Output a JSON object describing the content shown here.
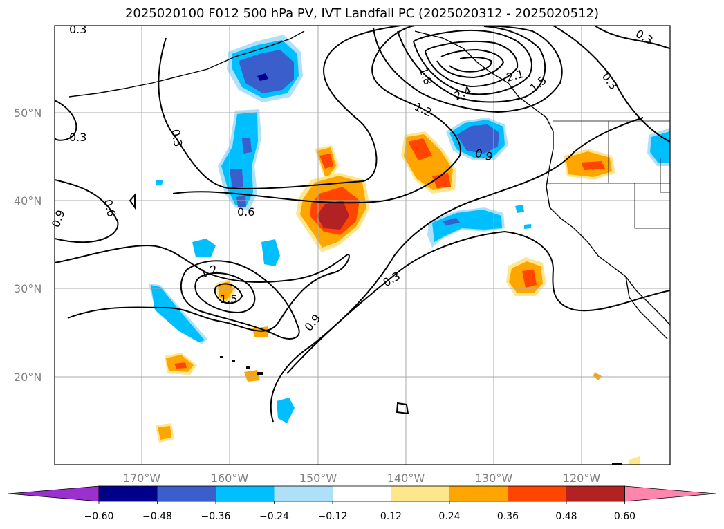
{
  "title": "2025020100 F012 500 hPa PV, IVT Landfall PC (2025020312 - 2025020512)",
  "lat_ticks": [
    "50°N",
    "40°N",
    "30°N",
    "20°N"
  ],
  "lon_ticks": [
    "170°W",
    "160°W",
    "150°W",
    "140°W",
    "130°W",
    "120°W"
  ],
  "colorbar": {
    "levels": [
      "−0.60",
      "−0.48",
      "−0.36",
      "−0.24",
      "−0.12",
      "0.12",
      "0.24",
      "0.36",
      "0.48",
      "0.60"
    ],
    "colors": [
      "#9a31cf",
      "#00008b",
      "#3a5fcd",
      "#00bfff",
      "#afe0f9",
      "#ffffff",
      "#fde68c",
      "#ffa500",
      "#ff4500",
      "#b22222",
      "#ff85ad"
    ]
  },
  "contour_labels": [
    "0.3",
    "0.3",
    "0.3",
    "0.3",
    "0.3",
    "0.3",
    "0.6",
    "0.6",
    "0.9",
    "0.9",
    "0.9",
    "1.2",
    "1.2",
    "1.5",
    "1.5",
    "1.8",
    "2.1",
    "2.4"
  ],
  "fill_colors": {
    "neg_dark": "#00008b",
    "neg_mid": "#3a5fcd",
    "neg": "#00bfff",
    "neg_light": "#afe0f9",
    "pos_light": "#fde68c",
    "pos": "#ffa500",
    "pos_mid": "#ff4500",
    "pos_dark": "#b22222"
  }
}
